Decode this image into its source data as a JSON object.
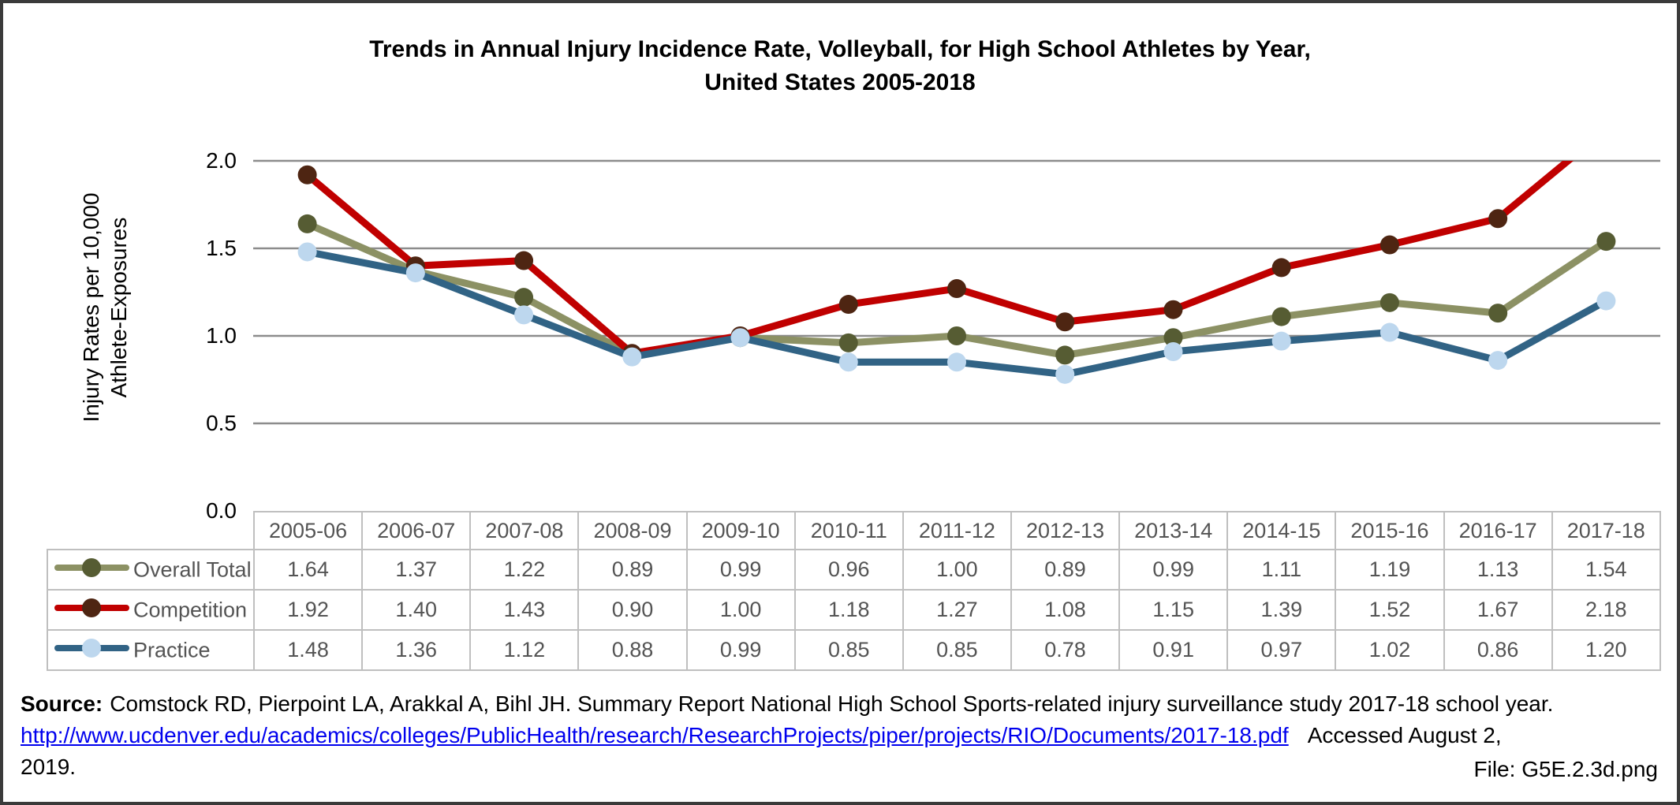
{
  "title": {
    "line1": "Trends in Annual Injury Incidence Rate, Volleyball, for High School Athletes by Year,",
    "line2": "United States 2005-2018"
  },
  "chart_data": {
    "type": "line",
    "title": "Trends in Annual Injury Incidence Rate, Volleyball, for High School Athletes by Year, United States 2005-2018",
    "ylabel": "Injury Rates per 10,000 Athlete-Exposures",
    "ylabel_lines": [
      "Injury Rates per 10,000",
      "Athlete-Exposures"
    ],
    "xlabel": "",
    "ylim": [
      0.0,
      2.0
    ],
    "yticks": [
      0.0,
      0.5,
      1.0,
      1.5,
      2.0
    ],
    "grid": true,
    "legend_position": "table-row-headers-left",
    "categories": [
      "2005-06",
      "2006-07",
      "2007-08",
      "2008-09",
      "2009-10",
      "2010-11",
      "2011-12",
      "2012-13",
      "2013-14",
      "2014-15",
      "2015-16",
      "2016-17",
      "2017-18"
    ],
    "series": [
      {
        "name": "Overall Total",
        "values": [
          1.64,
          1.37,
          1.22,
          0.89,
          0.99,
          0.96,
          1.0,
          0.89,
          0.99,
          1.11,
          1.19,
          1.13,
          1.54
        ],
        "line_color": "#8C9164",
        "marker_color": "#565C33"
      },
      {
        "name": "Competition",
        "values": [
          1.92,
          1.4,
          1.43,
          0.9,
          1.0,
          1.18,
          1.27,
          1.08,
          1.15,
          1.39,
          1.52,
          1.67,
          2.18
        ],
        "line_color": "#C00000",
        "marker_color": "#4E2512"
      },
      {
        "name": "Practice",
        "values": [
          1.48,
          1.36,
          1.12,
          0.88,
          0.99,
          0.85,
          0.85,
          0.78,
          0.91,
          0.97,
          1.02,
          0.86,
          1.2
        ],
        "line_color": "#316385",
        "marker_color": "#BDD7EE"
      }
    ]
  },
  "source": {
    "label": "Source:",
    "citation": "Comstock RD, Pierpoint LA, Arakkal A, Bihl JH. Summary Report National High School Sports-related injury surveillance study 2017-18 school year.",
    "url": "http://www.ucdenver.edu/academics/colleges/PublicHealth/research/ResearchProjects/piper/projects/RIO/Documents/2017-18.pdf",
    "accessed": "Accessed August 2,",
    "accessed_line2": "2019."
  },
  "file_label": "File: G5E.2.3d.png",
  "colors": {
    "gridline": "#8C8C8C",
    "table_border": "#BFBFBF",
    "table_text": "#545454",
    "link": "#0000EE",
    "frame": "#3A3A3A",
    "background": "#FFFFFF"
  }
}
